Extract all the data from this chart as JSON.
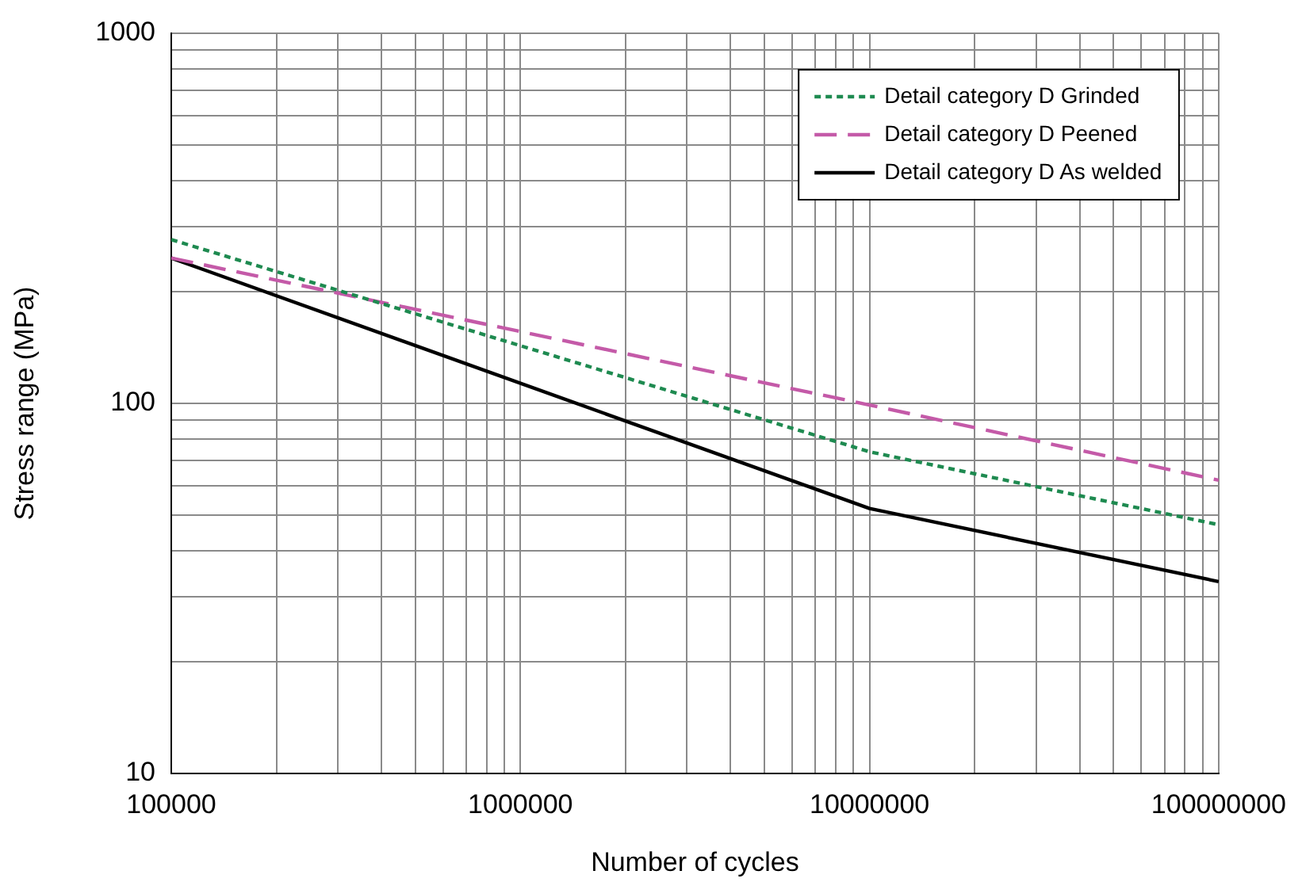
{
  "chart_data": {
    "type": "line",
    "xlabel": "Number of cycles",
    "ylabel": "Stress range (MPa)",
    "log": "xy",
    "grid": true,
    "legend": "top right",
    "marker": "none",
    "xlim": [
      100000,
      100000000
    ],
    "ylim": [
      10,
      1000
    ],
    "xticks": [
      100000,
      {
        "value": 200000,
        "label": null
      },
      {
        "value": 300000,
        "label": null
      },
      {
        "value": 400000,
        "label": null
      },
      {
        "value": 500000,
        "label": null
      },
      {
        "value": 600000,
        "label": null
      },
      {
        "value": 700000,
        "label": null
      },
      {
        "value": 800000,
        "label": null
      },
      {
        "value": 900000,
        "label": null
      },
      1000000,
      {
        "value": 2000000,
        "label": null
      },
      {
        "value": 3000000,
        "label": null
      },
      {
        "value": 4000000,
        "label": null
      },
      {
        "value": 5000000,
        "label": null
      },
      {
        "value": 6000000,
        "label": null
      },
      {
        "value": 7000000,
        "label": null
      },
      {
        "value": 8000000,
        "label": null
      },
      {
        "value": 9000000,
        "label": null
      },
      10000000,
      {
        "value": 20000000,
        "label": null
      },
      {
        "value": 30000000,
        "label": null
      },
      {
        "value": 40000000,
        "label": null
      },
      {
        "value": 50000000,
        "label": null
      },
      {
        "value": 60000000,
        "label": null
      },
      {
        "value": 70000000,
        "label": null
      },
      {
        "value": 80000000,
        "label": null
      },
      {
        "value": 90000000,
        "label": null
      },
      100000000
    ],
    "yticks": [
      10,
      {
        "value": 20,
        "label": null
      },
      {
        "value": 30,
        "label": null
      },
      {
        "value": 40,
        "label": null
      },
      {
        "value": 50,
        "label": null
      },
      {
        "value": 60,
        "label": null
      },
      {
        "value": 70,
        "label": null
      },
      {
        "value": 80,
        "label": null
      },
      {
        "value": 90,
        "label": null
      },
      100,
      {
        "value": 200,
        "label": null
      },
      {
        "value": 300,
        "label": null
      },
      {
        "value": 400,
        "label": null
      },
      {
        "value": 500,
        "label": null
      },
      {
        "value": 600,
        "label": null
      },
      {
        "value": 700,
        "label": null
      },
      {
        "value": 800,
        "label": null
      },
      {
        "value": 900,
        "label": null
      },
      1000
    ],
    "x": [
      100000,
      10000000,
      100000000
    ],
    "series": [
      {
        "name": "Detail category D Grinded",
        "color": "#1e8a50",
        "line_style": "dotted",
        "values": [
          277,
          74,
          47
        ]
      },
      {
        "name": "Detail category D Peened",
        "color": "#c45aa8",
        "line_style": "dashed",
        "values": [
          247,
          99,
          62
        ]
      },
      {
        "name": "Detail category D As welded",
        "color": "#000000",
        "line_style": "solid",
        "values": [
          247,
          52,
          33
        ]
      }
    ]
  }
}
